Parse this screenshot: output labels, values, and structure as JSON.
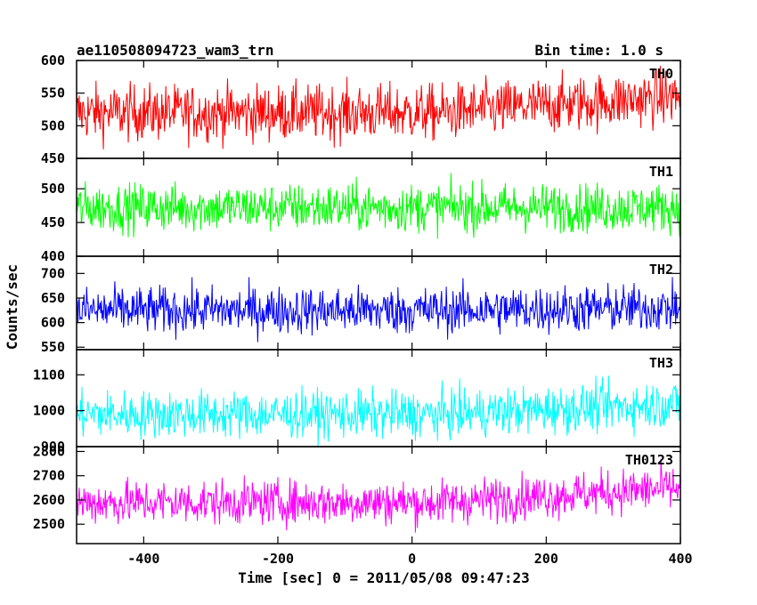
{
  "header": {
    "title": "ae110508094723_wam3_trn",
    "bin_time": "Bin time: 1.0 s"
  },
  "chart_data": {
    "type": "line",
    "title": "ae110508094723_wam3_trn",
    "subtitle": "Bin time: 1.0 s",
    "xlabel": "Time [sec] 0 = 2011/05/08 09:47:23",
    "ylabel": "Counts/sec",
    "xlim": [
      -500,
      400
    ],
    "x_ticks": [
      -400,
      -200,
      0,
      200,
      400
    ],
    "x_range": [
      -500,
      400
    ],
    "x_step": 1,
    "grid": false,
    "legend": "none",
    "panels": [
      {
        "name": "TH0",
        "color": "#ff0000",
        "ylim": [
          450,
          600
        ],
        "y_ticks": [
          450,
          500,
          550,
          600
        ],
        "mean": 520,
        "band_low": 480,
        "band_high": 565,
        "trend_end": 545
      },
      {
        "name": "TH1",
        "color": "#00ff00",
        "ylim": [
          400,
          545
        ],
        "y_ticks": [
          400,
          450,
          500
        ],
        "mean": 472,
        "band_low": 440,
        "band_high": 510,
        "trend_end": 472
      },
      {
        "name": "TH2",
        "color": "#0000ff",
        "ylim": [
          545,
          735
        ],
        "y_ticks": [
          550,
          600,
          650,
          700
        ],
        "mean": 625,
        "band_low": 580,
        "band_high": 675,
        "trend_end": 630
      },
      {
        "name": "TH3",
        "color": "#00ffff",
        "ylim": [
          900,
          1170
        ],
        "y_ticks": [
          900,
          1000,
          1100
        ],
        "mean": 990,
        "band_low": 930,
        "band_high": 1060,
        "trend_end": 1020
      },
      {
        "name": "TH0123",
        "color": "#ff00ff",
        "ylim": [
          2420,
          2820
        ],
        "y_ticks": [
          2500,
          2600,
          2700,
          2800
        ],
        "mean": 2590,
        "band_low": 2510,
        "band_high": 2690,
        "trend_end": 2650
      }
    ]
  }
}
